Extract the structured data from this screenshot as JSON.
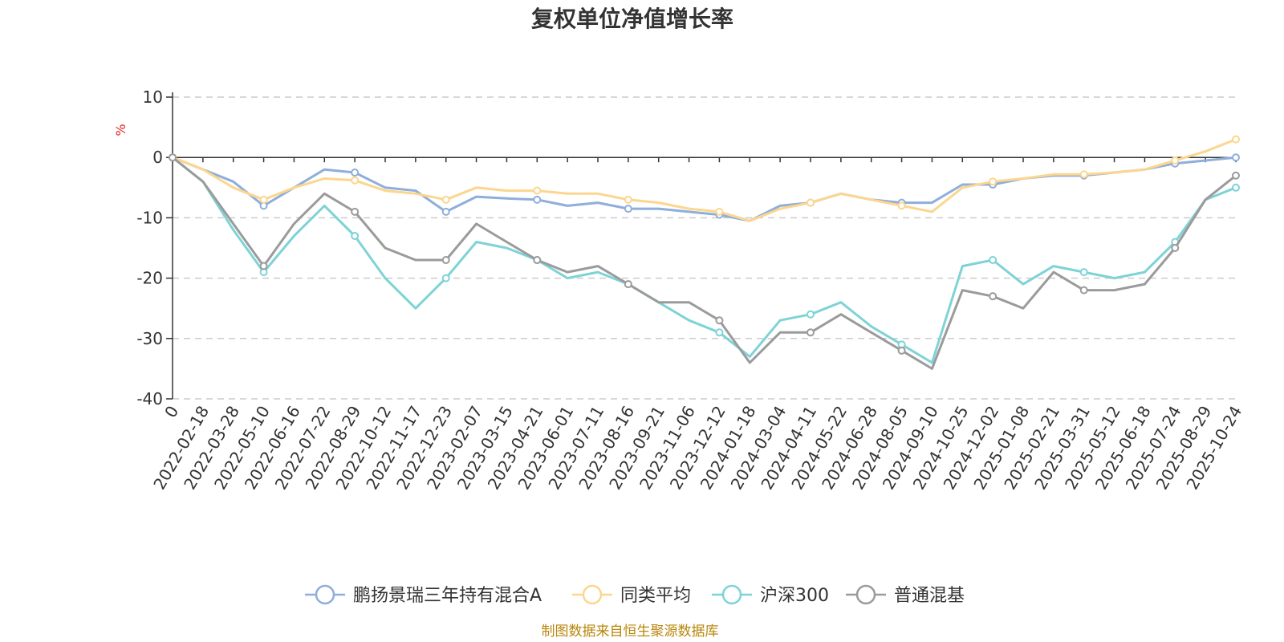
{
  "chart_data": {
    "type": "line",
    "title": "复权单位净值增长率",
    "ylabel": "%",
    "ylim": [
      -40,
      10
    ],
    "yticks": [
      10,
      0,
      -10,
      -20,
      -30,
      -40
    ],
    "grid": true,
    "legend_position": "bottom-center",
    "x_ticks": [
      "0",
      "2022-02-18",
      "2022-03-28",
      "2022-05-10",
      "2022-06-16",
      "2022-07-22",
      "2022-08-29",
      "2022-10-12",
      "2022-11-17",
      "2022-12-23",
      "2023-02-07",
      "2023-03-15",
      "2023-04-21",
      "2023-06-01",
      "2023-07-11",
      "2023-08-16",
      "2023-09-21",
      "2023-11-06",
      "2023-12-12",
      "2024-01-18",
      "2024-03-04",
      "2024-04-11",
      "2024-05-22",
      "2024-06-28",
      "2024-08-05",
      "2024-09-10",
      "2024-10-25",
      "2024-12-02",
      "2025-01-08",
      "2025-02-21",
      "2025-03-31",
      "2025-05-12",
      "2025-06-18",
      "2025-07-24",
      "2025-08-29",
      "2025-10-24"
    ],
    "series": [
      {
        "name": "鹏扬景瑞三年持有混合A",
        "color": "#8eaedb",
        "values": [
          0,
          -2,
          -4,
          -8,
          -5,
          -2,
          -2.5,
          -5,
          -5.5,
          -9,
          -6.5,
          -6.8,
          -7,
          -8,
          -7.5,
          -8.5,
          -8.5,
          -9,
          -9.5,
          -10.5,
          -8,
          -7.5,
          -6,
          -7,
          -7.5,
          -7.5,
          -4.5,
          -4.5,
          -3.5,
          -3,
          -3,
          -2.5,
          -2,
          -1,
          -0.5,
          0
        ]
      },
      {
        "name": "同类平均",
        "color": "#fcd68f",
        "values": [
          0,
          -2,
          -5,
          -7,
          -5,
          -3.5,
          -3.8,
          -5.5,
          -6,
          -7,
          -5,
          -5.5,
          -5.5,
          -6,
          -6,
          -7,
          -7.5,
          -8.5,
          -9,
          -10.5,
          -8.5,
          -7.5,
          -6,
          -7,
          -8,
          -9,
          -5,
          -4,
          -3.5,
          -2.8,
          -2.8,
          -2.5,
          -2,
          -0.5,
          1,
          3
        ]
      },
      {
        "name": "沪深300",
        "color": "#7ed3d6",
        "values": [
          0,
          -4,
          -12,
          -19,
          -13,
          -8,
          -13,
          -20,
          -25,
          -20,
          -14,
          -15,
          -17,
          -20,
          -19,
          -21,
          -24,
          -27,
          -29,
          -33,
          -27,
          -26,
          -24,
          -28,
          -31,
          -34,
          -18,
          -17,
          -21,
          -18,
          -19,
          -20,
          -19,
          -14,
          -7,
          -5
        ]
      },
      {
        "name": "普通混基",
        "color": "#9b9b9b",
        "values": [
          0,
          -4,
          -11,
          -18,
          -11,
          -6,
          -9,
          -15,
          -17,
          -17,
          -11,
          -14,
          -17,
          -19,
          -18,
          -21,
          -24,
          -24,
          -27,
          -34,
          -29,
          -29,
          -26,
          -29,
          -32,
          -35,
          -22,
          -23,
          -25,
          -19,
          -22,
          -22,
          -21,
          -15,
          -7,
          -3
        ]
      }
    ]
  },
  "footer": {
    "source": "制图数据来自恒生聚源数据库",
    "color": "#b8860b"
  }
}
